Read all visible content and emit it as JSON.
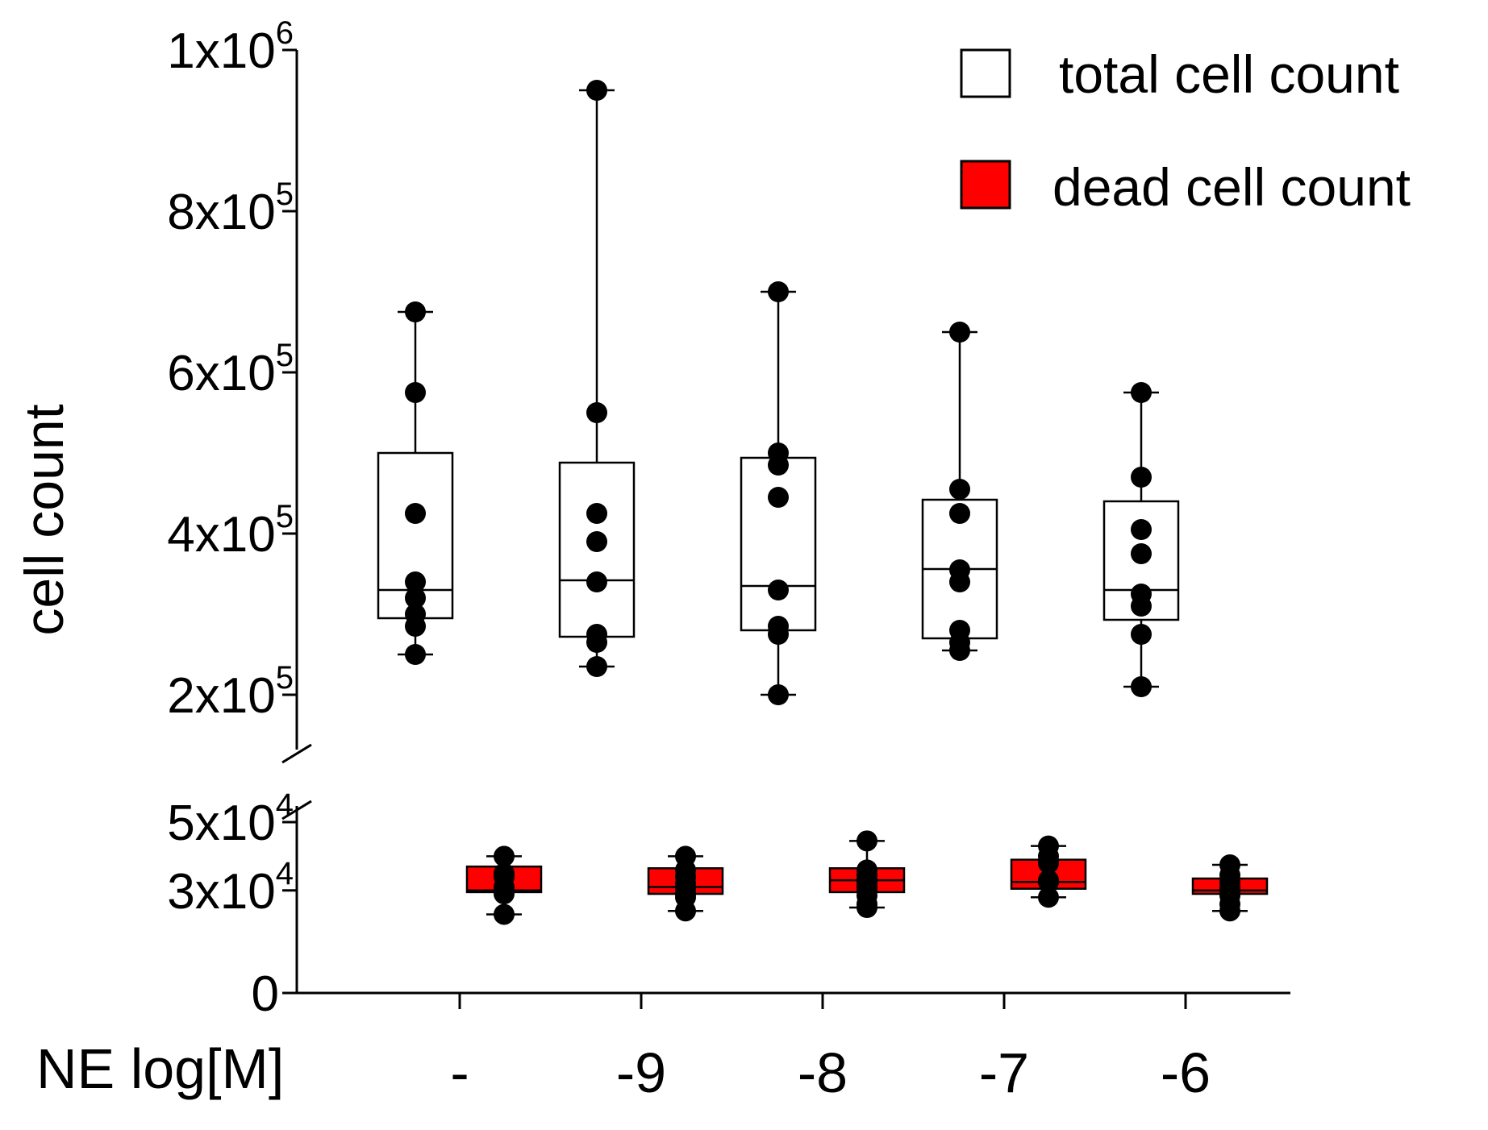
{
  "chart_data": {
    "type": "box",
    "y_axis_broken": true,
    "ylabel": "cell count",
    "xlabel": "NE log[M]",
    "categories": [
      "-",
      "-9",
      "-8",
      "-7",
      "-6"
    ],
    "upper_segment": {
      "ylim": [
        100000,
        1000000
      ],
      "ticks": [
        {
          "value": 200000,
          "base": "2x10",
          "exp": "5"
        },
        {
          "value": 400000,
          "base": "4x10",
          "exp": "5"
        },
        {
          "value": 600000,
          "base": "6x10",
          "exp": "5"
        },
        {
          "value": 800000,
          "base": "8x10",
          "exp": "5"
        },
        {
          "value": 1000000,
          "base": "1x10",
          "exp": "6"
        }
      ]
    },
    "lower_segment": {
      "ylim": [
        0,
        50000
      ],
      "ticks": [
        {
          "value": 0,
          "base": "0",
          "exp": ""
        },
        {
          "value": 30000,
          "base": "3x10",
          "exp": "4"
        },
        {
          "value": 50000,
          "base": "5x10",
          "exp": "4"
        }
      ]
    },
    "series": [
      {
        "name": "total cell count",
        "color": "#ffffff",
        "segment": "upper",
        "boxes": [
          {
            "category": "-",
            "min": 250000,
            "q1": 295000,
            "median": 330000,
            "q3": 500000,
            "max": 675000,
            "points": [
              250000,
              285000,
              300000,
              320000,
              340000,
              425000,
              575000,
              675000
            ]
          },
          {
            "category": "-9",
            "min": 235000,
            "q1": 272000,
            "median": 342000,
            "q3": 488000,
            "max": 950000,
            "points": [
              235000,
              265000,
              275000,
              340000,
              390000,
              425000,
              550000,
              950000
            ]
          },
          {
            "category": "-8",
            "min": 200000,
            "q1": 280000,
            "median": 335000,
            "q3": 494000,
            "max": 700000,
            "points": [
              200000,
              275000,
              285000,
              330000,
              445000,
              485000,
              500000,
              700000
            ]
          },
          {
            "category": "-7",
            "min": 255000,
            "q1": 270000,
            "median": 356000,
            "q3": 442000,
            "max": 650000,
            "points": [
              255000,
              265000,
              280000,
              340000,
              355000,
              425000,
              455000,
              650000
            ]
          },
          {
            "category": "-6",
            "min": 210000,
            "q1": 293000,
            "median": 330000,
            "q3": 440000,
            "max": 575000,
            "points": [
              210000,
              275000,
              310000,
              325000,
              375000,
              405000,
              470000,
              575000
            ]
          }
        ]
      },
      {
        "name": "dead cell count",
        "color": "#ff0000",
        "segment": "lower",
        "boxes": [
          {
            "category": "-",
            "min": 23000,
            "q1": 29500,
            "median": 30000,
            "q3": 37000,
            "max": 40000,
            "points": [
              23000,
              29000,
              31000,
              34000,
              35000,
              40000
            ]
          },
          {
            "category": "-9",
            "min": 24000,
            "q1": 29000,
            "median": 31000,
            "q3": 36500,
            "max": 40000,
            "points": [
              24000,
              28000,
              29000,
              30500,
              32000,
              34000,
              36000,
              40000
            ]
          },
          {
            "category": "-8",
            "min": 25000,
            "q1": 29500,
            "median": 33000,
            "q3": 36500,
            "max": 44500,
            "points": [
              25000,
              26000,
              28500,
              30000,
              31000,
              32000,
              33000,
              34500,
              36000,
              44500
            ]
          },
          {
            "category": "-7",
            "min": 28000,
            "q1": 30500,
            "median": 32500,
            "q3": 39000,
            "max": 43000,
            "points": [
              28000,
              32500,
              33000,
              38000,
              40000,
              43000
            ]
          },
          {
            "category": "-6",
            "min": 24000,
            "q1": 29000,
            "median": 30000,
            "q3": 33500,
            "max": 37500,
            "points": [
              24000,
              26000,
              28500,
              30000,
              31000,
              32500,
              34500,
              37500
            ]
          }
        ]
      }
    ],
    "legend": {
      "position": "top-right",
      "entries": [
        {
          "label": "total cell count",
          "color": "#ffffff"
        },
        {
          "label": "dead cell count",
          "color": "#ff0000"
        }
      ]
    }
  }
}
